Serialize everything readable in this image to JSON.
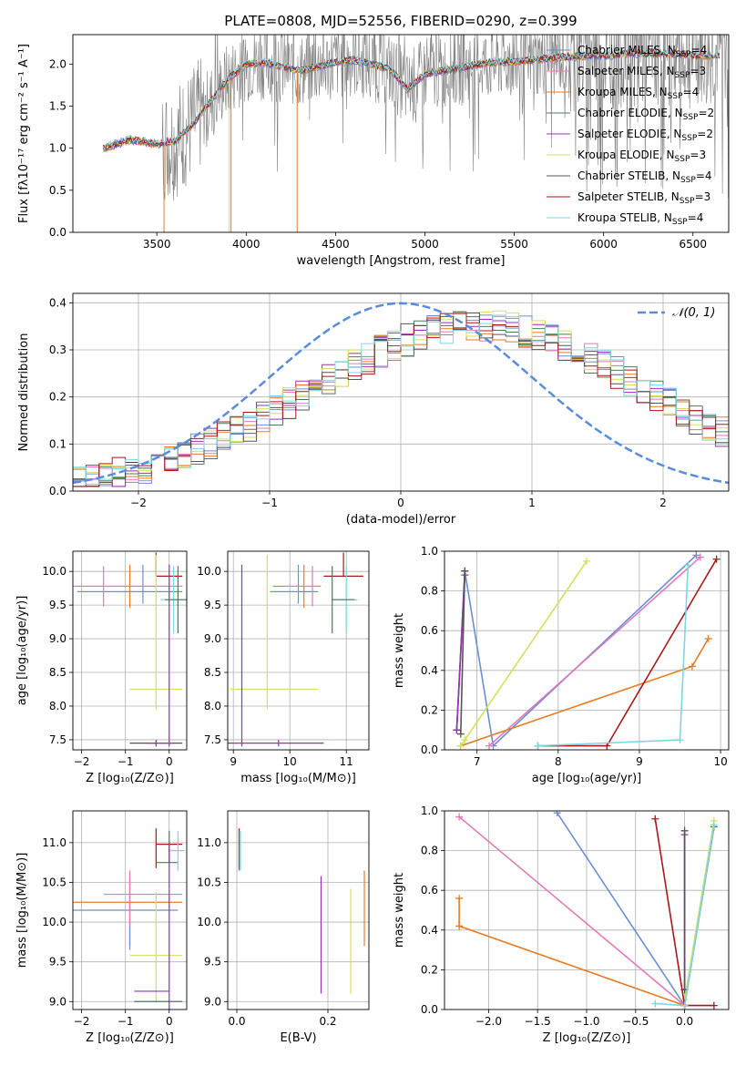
{
  "figure_title": "PLATE=0808, MJD=52556, FIBERID=0290, z=0.399",
  "colors": {
    "Chabrier MILES": "#6a8fd6",
    "Salpeter MILES": "#e07ab8",
    "Kroupa MILES": "#e87b22",
    "Chabrier ELODIE": "#4d7a5a",
    "Salpeter ELODIE": "#9b30b8",
    "Kroupa ELODIE": "#d4e05a",
    "Chabrier STELIB": "#555555",
    "Salpeter STELIB": "#a81818",
    "Kroupa STELIB": "#7dd6e0",
    "data": "#808080",
    "normal": "#5b8bdc"
  },
  "chart_data": [
    {
      "id": "spectrum",
      "type": "line",
      "title": "PLATE=0808, MJD=52556, FIBERID=0290, z=0.399",
      "xlabel": "wavelength [Angstrom, rest frame]",
      "ylabel": "Flux [fλ10⁻¹⁷ erg cm⁻² s⁻¹ A⁻¹]",
      "xlim": [
        3030,
        6700
      ],
      "ylim": [
        0,
        2.35
      ],
      "xticks": [
        3500,
        4000,
        4500,
        5000,
        5500,
        6000,
        6500
      ],
      "yticks": [
        0.0,
        0.5,
        1.0,
        1.5,
        2.0
      ],
      "legend_position": "upper-right",
      "grid": false,
      "series": [
        {
          "name": "Chabrier MILES, N_SSP=4"
        },
        {
          "name": "Salpeter MILES, N_SSP=3"
        },
        {
          "name": "Kroupa MILES, N_SSP=4"
        },
        {
          "name": "Chabrier ELODIE, N_SSP=2"
        },
        {
          "name": "Salpeter ELODIE, N_SSP=2"
        },
        {
          "name": "Kroupa ELODIE, N_SSP=3"
        },
        {
          "name": "Chabrier STELIB, N_SSP=4"
        },
        {
          "name": "Salpeter STELIB, N_SSP=3"
        },
        {
          "name": "Kroupa STELIB, N_SSP=4"
        }
      ],
      "continuum": {
        "x": [
          3200,
          3350,
          3500,
          3600,
          3700,
          3800,
          3900,
          4000,
          4100,
          4200,
          4300,
          4400,
          4500,
          4600,
          4700,
          4800,
          4900,
          5000,
          5100,
          5200,
          5300,
          5400,
          5500,
          5600,
          5700,
          5800,
          5900,
          6000,
          6100,
          6200,
          6300,
          6400,
          6500
        ],
        "y": [
          1.0,
          1.1,
          1.05,
          1.08,
          1.28,
          1.55,
          1.82,
          2.0,
          2.02,
          1.97,
          1.92,
          1.97,
          2.02,
          2.05,
          2.0,
          1.95,
          1.7,
          1.88,
          1.92,
          1.95,
          2.0,
          2.02,
          2.03,
          2.05,
          2.07,
          2.08,
          2.1,
          2.1,
          2.12,
          2.13,
          2.12,
          2.12,
          2.1
        ]
      }
    },
    {
      "id": "residuals",
      "type": "histogram",
      "xlabel": "(data-model)/error",
      "ylabel": "Normed distribution",
      "xlim": [
        -2.5,
        2.5
      ],
      "ylim": [
        0,
        0.42
      ],
      "xticks": [
        -2,
        -1,
        0,
        1,
        2
      ],
      "yticks": [
        0.0,
        0.1,
        0.2,
        0.3,
        0.4
      ],
      "grid": true,
      "legend_position": "upper-right",
      "legend": "𝒩(0, 1)",
      "bin_width": 0.1,
      "bin_start": -2.5,
      "base": [
        0.025,
        0.028,
        0.032,
        0.037,
        0.043,
        0.05,
        0.058,
        0.067,
        0.077,
        0.088,
        0.1,
        0.113,
        0.126,
        0.14,
        0.155,
        0.17,
        0.186,
        0.202,
        0.219,
        0.236,
        0.252,
        0.268,
        0.283,
        0.297,
        0.31,
        0.321,
        0.331,
        0.339,
        0.345,
        0.349,
        0.351,
        0.351,
        0.349,
        0.345,
        0.339,
        0.331,
        0.321,
        0.31,
        0.297,
        0.283,
        0.268,
        0.252,
        0.236,
        0.219,
        0.202,
        0.186,
        0.17,
        0.155,
        0.14,
        0.126
      ]
    },
    {
      "id": "age-vs-Z",
      "type": "scatter",
      "xlabel": "Z [log₁₀(Z/Z⊙)]",
      "ylabel": "age  [log₁₀(age/yr)]",
      "xlim": [
        -2.2,
        0.4
      ],
      "ylim": [
        7.35,
        10.3
      ],
      "xticks": [
        -2,
        -1,
        0
      ],
      "yticks": [
        7.5,
        8.0,
        8.5,
        9.0,
        9.5,
        10.0
      ],
      "grid": true
    },
    {
      "id": "age-vs-mass",
      "type": "scatter",
      "xlabel": "mass [log₁₀(M/M⊙)]",
      "xlim": [
        8.9,
        11.4
      ],
      "ylim": [
        7.35,
        10.3
      ],
      "xticks": [
        9,
        10,
        11
      ],
      "yticks": [
        7.5,
        8.0,
        8.5,
        9.0,
        9.5,
        10.0
      ],
      "grid": true
    },
    {
      "id": "weight-vs-age",
      "type": "line",
      "xlabel": "age  [log₁₀(age/yr)]",
      "ylabel": "mass weight",
      "xlim": [
        6.6,
        10.1
      ],
      "ylim": [
        0,
        1.0
      ],
      "xticks": [
        7,
        8,
        9,
        10
      ],
      "yticks": [
        0.0,
        0.2,
        0.4,
        0.6,
        0.8,
        1.0
      ],
      "grid": true,
      "series": [
        {
          "name": "Chabrier MILES",
          "x": [
            6.75,
            6.85,
            7.2,
            9.7
          ],
          "y": [
            0.1,
            0.9,
            0.02,
            0.98
          ]
        },
        {
          "name": "Salpeter MILES",
          "x": [
            7.15,
            9.75
          ],
          "y": [
            0.02,
            0.97
          ]
        },
        {
          "name": "Kroupa MILES",
          "x": [
            6.8,
            9.65,
            9.85
          ],
          "y": [
            0.02,
            0.42,
            0.56
          ]
        },
        {
          "name": "Chabrier ELODIE",
          "x": [
            6.75,
            6.85
          ],
          "y": [
            0.1,
            0.9
          ]
        },
        {
          "name": "Salpeter ELODIE",
          "x": [
            6.75,
            6.85
          ],
          "y": [
            0.1,
            0.88
          ]
        },
        {
          "name": "Kroupa ELODIE",
          "x": [
            6.8,
            6.85,
            8.35
          ],
          "y": [
            0.02,
            0.05,
            0.95
          ]
        },
        {
          "name": "Chabrier STELIB",
          "x": [
            6.8,
            6.85
          ],
          "y": [
            0.08,
            0.9
          ]
        },
        {
          "name": "Salpeter STELIB",
          "x": [
            7.75,
            8.6,
            9.95
          ],
          "y": [
            0.02,
            0.02,
            0.96
          ]
        },
        {
          "name": "Kroupa STELIB",
          "x": [
            7.75,
            9.5,
            9.6
          ],
          "y": [
            0.02,
            0.05,
            0.93
          ]
        }
      ]
    },
    {
      "id": "mass-vs-Z",
      "type": "scatter",
      "xlabel": "Z [log₁₀(Z/Z⊙)]",
      "ylabel": "mass [log₁₀(M/M⊙)]",
      "xlim": [
        -2.2,
        0.4
      ],
      "ylim": [
        8.9,
        11.4
      ],
      "xticks": [
        -2,
        -1,
        0
      ],
      "yticks": [
        9.0,
        9.5,
        10.0,
        10.5,
        11.0
      ],
      "grid": true
    },
    {
      "id": "mass-vs-ebv",
      "type": "scatter",
      "xlabel": "E(B-V)",
      "xlim": [
        -0.02,
        0.29
      ],
      "ylim": [
        8.9,
        11.4
      ],
      "xticks": [
        0.0,
        0.2
      ],
      "yticks": [
        9.0,
        9.5,
        10.0,
        10.5,
        11.0
      ],
      "grid": true
    },
    {
      "id": "weight-vs-Z",
      "type": "line",
      "xlabel": "Z [log₁₀(Z/Z⊙)]",
      "ylabel": "mass weight",
      "xlim": [
        -2.45,
        0.45
      ],
      "ylim": [
        0,
        1.0
      ],
      "xticks": [
        -2.0,
        -1.5,
        -1.0,
        -0.5,
        0.0
      ],
      "yticks": [
        0.0,
        0.2,
        0.4,
        0.6,
        0.8,
        1.0
      ],
      "grid": true,
      "series": [
        {
          "name": "Chabrier MILES",
          "x": [
            -1.3,
            0.0
          ],
          "y": [
            0.99,
            0.02
          ]
        },
        {
          "name": "Salpeter MILES",
          "x": [
            -2.3,
            0.0
          ],
          "y": [
            0.97,
            0.02
          ]
        },
        {
          "name": "Kroupa MILES",
          "x": [
            -2.3,
            -2.3,
            0.0
          ],
          "y": [
            0.56,
            0.42,
            0.02
          ]
        },
        {
          "name": "Chabrier ELODIE",
          "x": [
            0.0,
            0.3
          ],
          "y": [
            0.02,
            0.92
          ]
        },
        {
          "name": "Salpeter ELODIE",
          "x": [
            0.0,
            0.0
          ],
          "y": [
            0.1,
            0.88
          ]
        },
        {
          "name": "Kroupa ELODIE",
          "x": [
            0.0,
            0.3
          ],
          "y": [
            0.05,
            0.95
          ]
        },
        {
          "name": "Chabrier STELIB",
          "x": [
            0.0,
            0.0
          ],
          "y": [
            0.1,
            0.9
          ]
        },
        {
          "name": "Salpeter STELIB",
          "x": [
            -0.3,
            0.0,
            0.3
          ],
          "y": [
            0.96,
            0.02,
            0.02
          ]
        },
        {
          "name": "Kroupa STELIB",
          "x": [
            -0.3,
            0.0,
            0.3
          ],
          "y": [
            0.03,
            0.02,
            0.93
          ]
        }
      ]
    }
  ]
}
